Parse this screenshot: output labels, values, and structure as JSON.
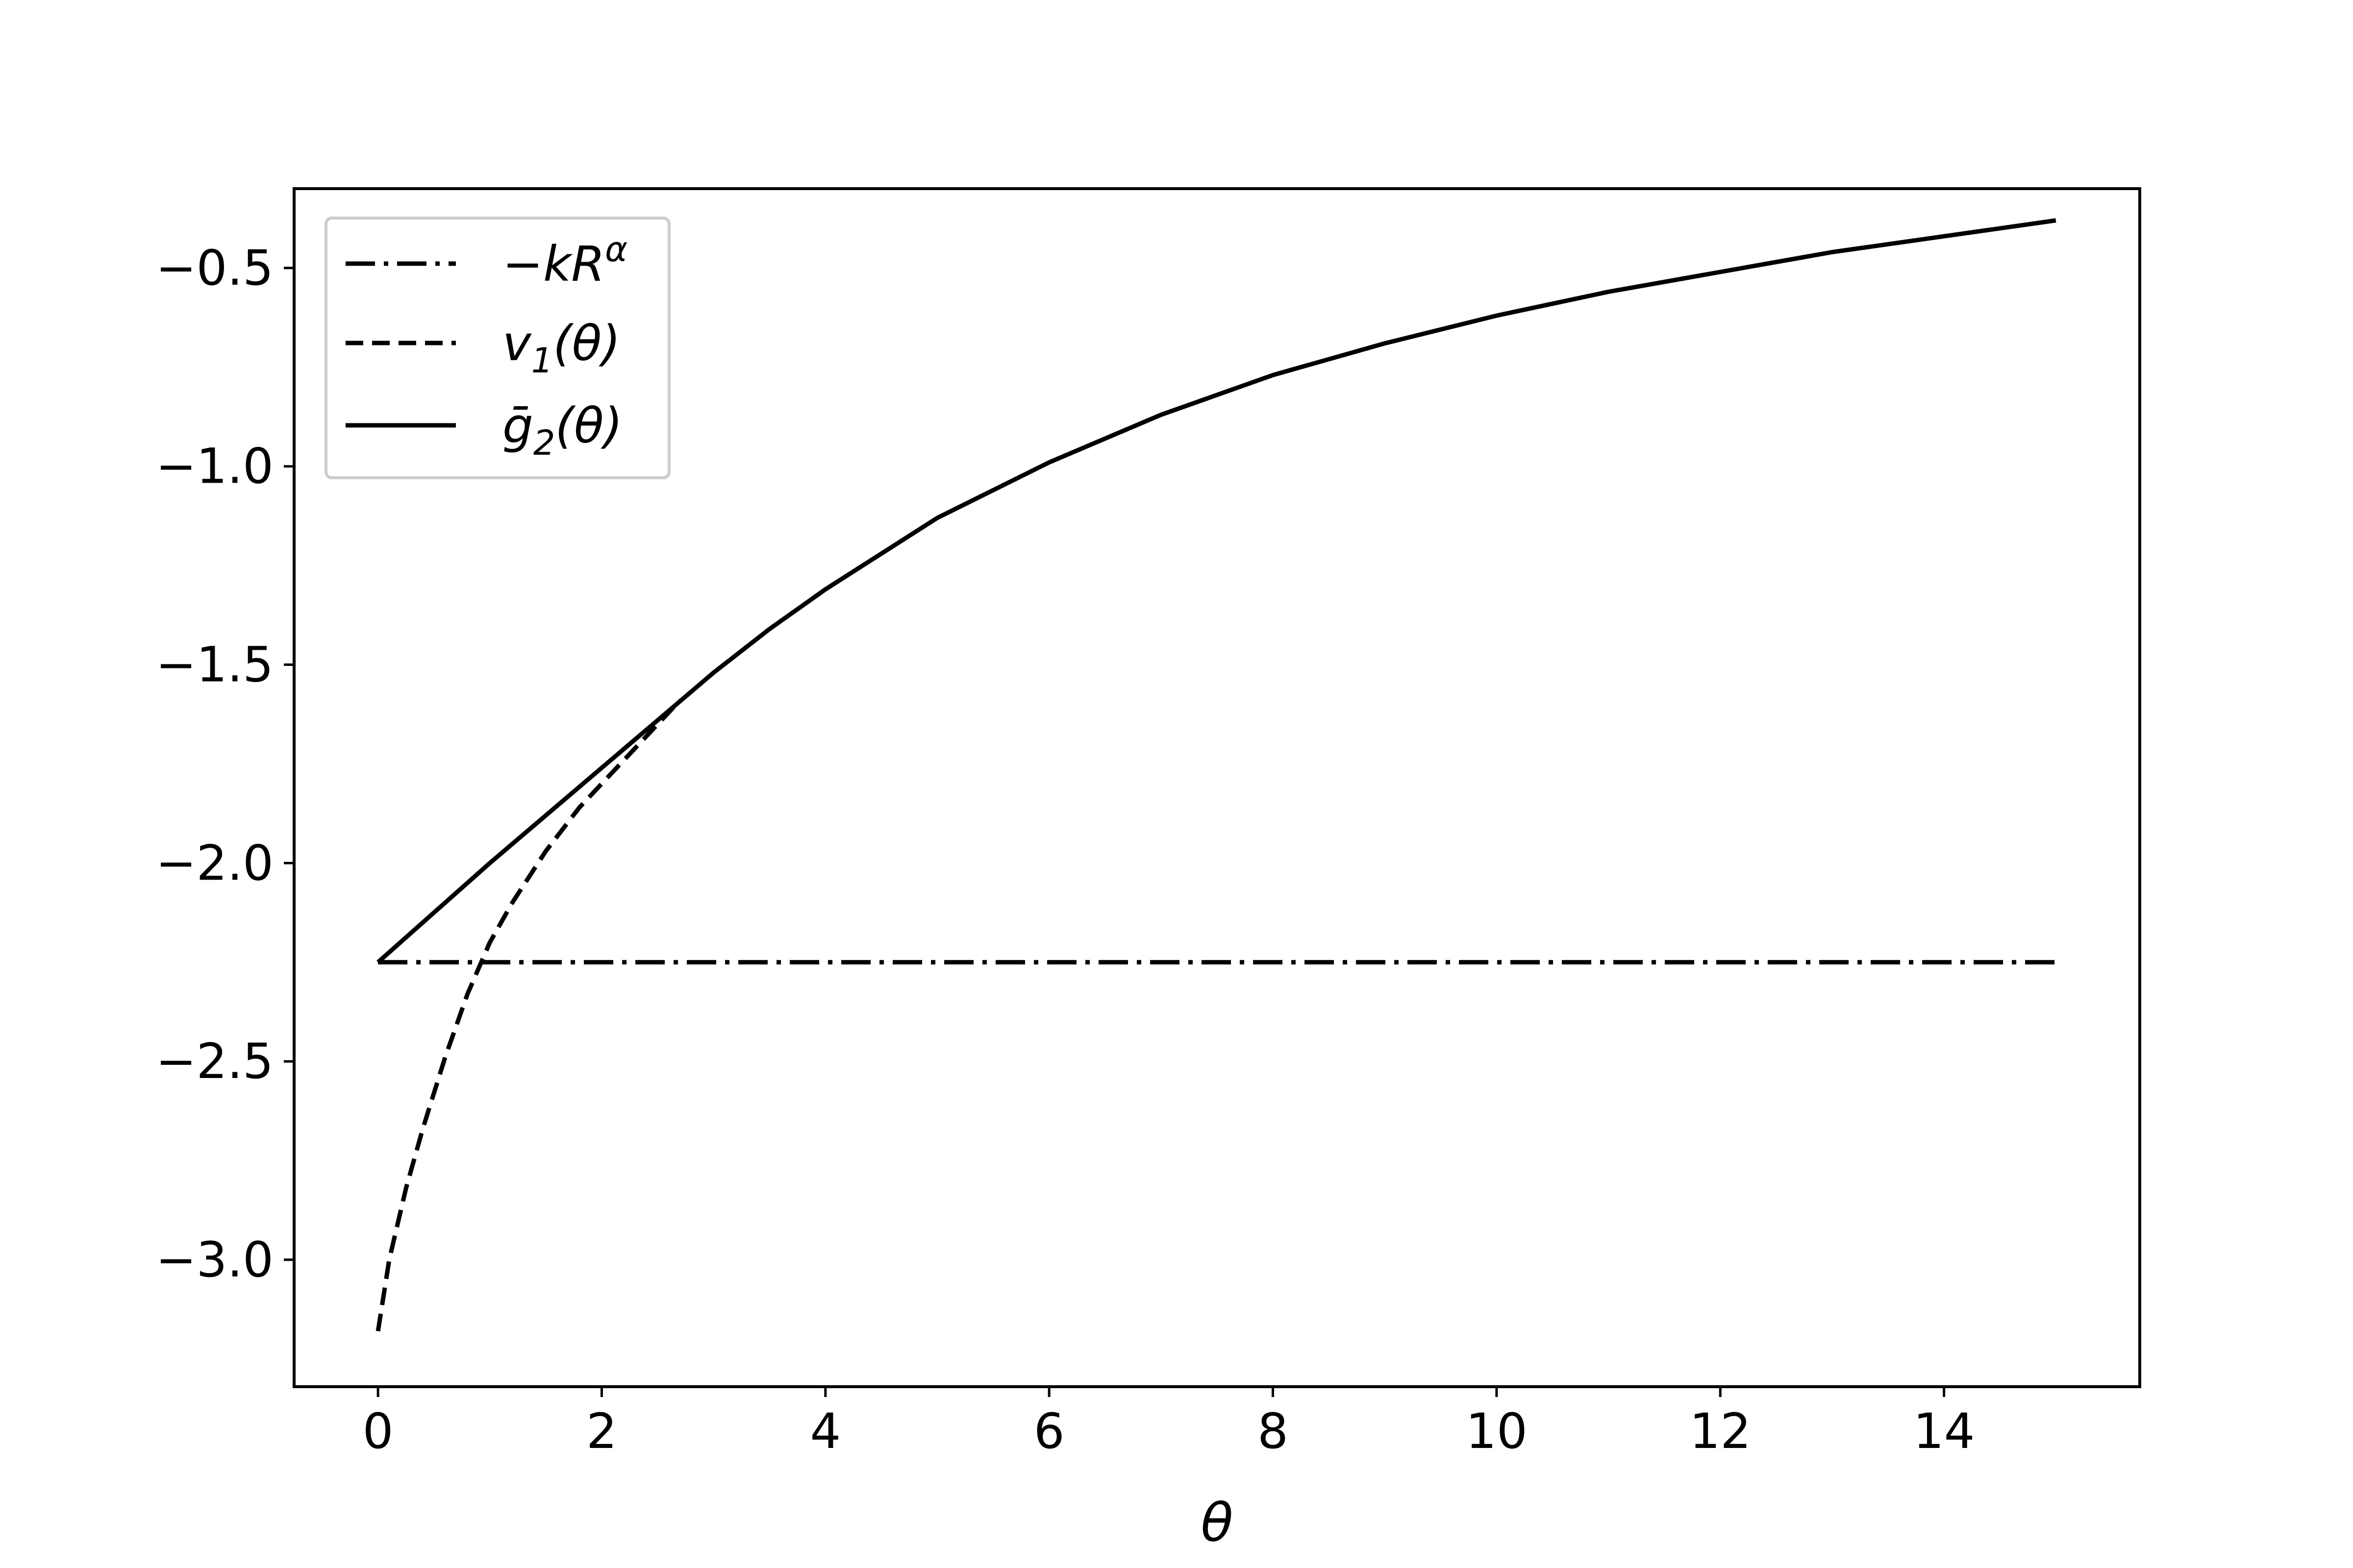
{
  "chart_data": {
    "type": "line",
    "title": "",
    "xlabel": "θ",
    "ylabel": "",
    "xlim": [
      -0.75,
      15.75
    ],
    "ylim": [
      -3.32,
      -0.3
    ],
    "xticks": [
      0,
      2,
      4,
      6,
      8,
      10,
      12,
      14
    ],
    "xtick_labels": [
      "0",
      "2",
      "4",
      "6",
      "8",
      "10",
      "12",
      "14"
    ],
    "yticks": [
      -3.0,
      -2.5,
      -2.0,
      -1.5,
      -1.0,
      -0.5
    ],
    "ytick_labels": [
      "−3.0",
      "−2.5",
      "−2.0",
      "−1.5",
      "−1.0",
      "−0.5"
    ],
    "grid": false,
    "legend_position": "upper-left",
    "series": [
      {
        "name": "−kR^α",
        "name_parts": {
          "main": "−kR",
          "sup": "α",
          "sub": ""
        },
        "style": "dashdot",
        "color": "#000000",
        "x": [
          0,
          15
        ],
        "y": [
          -2.25,
          -2.25
        ]
      },
      {
        "name": "v₁(θ)",
        "name_parts": {
          "main": "v",
          "sub": "1",
          "tail": "(θ)"
        },
        "style": "dashed",
        "color": "#000000",
        "x": [
          0,
          0.1,
          0.25,
          0.4,
          0.6,
          0.8,
          1.0,
          1.2,
          1.5,
          1.8,
          2.1,
          2.4,
          2.7
        ],
        "y": [
          -3.18,
          -3.0,
          -2.82,
          -2.67,
          -2.49,
          -2.33,
          -2.2,
          -2.1,
          -1.97,
          -1.86,
          -1.77,
          -1.68,
          -1.59
        ]
      },
      {
        "name": "ḡ₂(θ)",
        "name_parts": {
          "main": "ḡ",
          "sub": "2",
          "tail": "(θ)"
        },
        "style": "solid",
        "color": "#000000",
        "x": [
          0,
          1,
          2,
          2.5,
          3,
          3.5,
          4,
          5,
          6,
          7,
          8,
          9,
          10,
          11,
          12,
          13,
          14,
          15
        ],
        "y": [
          -2.25,
          -2.0,
          -1.76,
          -1.64,
          -1.52,
          -1.41,
          -1.31,
          -1.13,
          -0.99,
          -0.87,
          -0.77,
          -0.69,
          -0.62,
          -0.56,
          -0.51,
          -0.46,
          -0.42,
          -0.38
        ]
      }
    ]
  }
}
